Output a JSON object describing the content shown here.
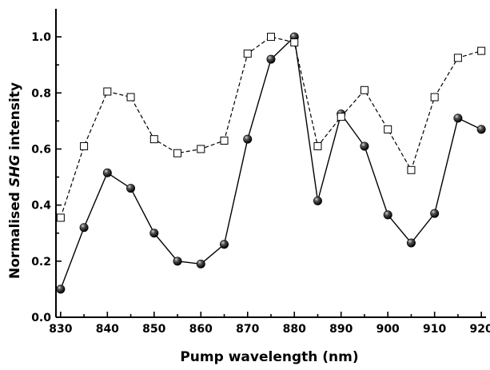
{
  "chart_data": {
    "type": "line",
    "xlabel": "Pump wavelength (nm)",
    "ylabel_prefix": "Normalised ",
    "ylabel_italic": "SHG",
    "ylabel_suffix": " intensity",
    "xlim": [
      829,
      921
    ],
    "ylim": [
      0.0,
      1.1
    ],
    "xticks": [
      830,
      840,
      850,
      860,
      870,
      880,
      890,
      900,
      910,
      920
    ],
    "xticks_minor": [
      835,
      845,
      855,
      865,
      875,
      885,
      895,
      905,
      915
    ],
    "yticks": [
      0.0,
      0.2,
      0.4,
      0.6,
      0.8,
      1.0
    ],
    "yticks_minor": [
      0.1,
      0.3,
      0.5,
      0.7,
      0.9
    ],
    "grid": false,
    "legend": false,
    "series": [
      {
        "marker": "filled-sphere",
        "line_style": "solid",
        "color": "#000000",
        "x": [
          830,
          835,
          840,
          845,
          850,
          855,
          860,
          865,
          870,
          875,
          880,
          885,
          890,
          895,
          900,
          905,
          910,
          915,
          920
        ],
        "y": [
          0.1,
          0.32,
          0.515,
          0.46,
          0.3,
          0.2,
          0.19,
          0.26,
          0.635,
          0.92,
          1.0,
          0.415,
          0.725,
          0.61,
          0.365,
          0.265,
          0.37,
          0.71,
          0.67
        ]
      },
      {
        "marker": "open-square",
        "line_style": "dashed",
        "color": "#000000",
        "x": [
          830,
          835,
          840,
          845,
          850,
          855,
          860,
          865,
          870,
          875,
          880,
          885,
          890,
          895,
          900,
          905,
          910,
          915,
          920
        ],
        "y": [
          0.355,
          0.61,
          0.805,
          0.785,
          0.635,
          0.585,
          0.6,
          0.63,
          0.94,
          1.0,
          0.98,
          0.61,
          0.715,
          0.81,
          0.67,
          0.525,
          0.785,
          0.925,
          0.95
        ]
      }
    ]
  }
}
